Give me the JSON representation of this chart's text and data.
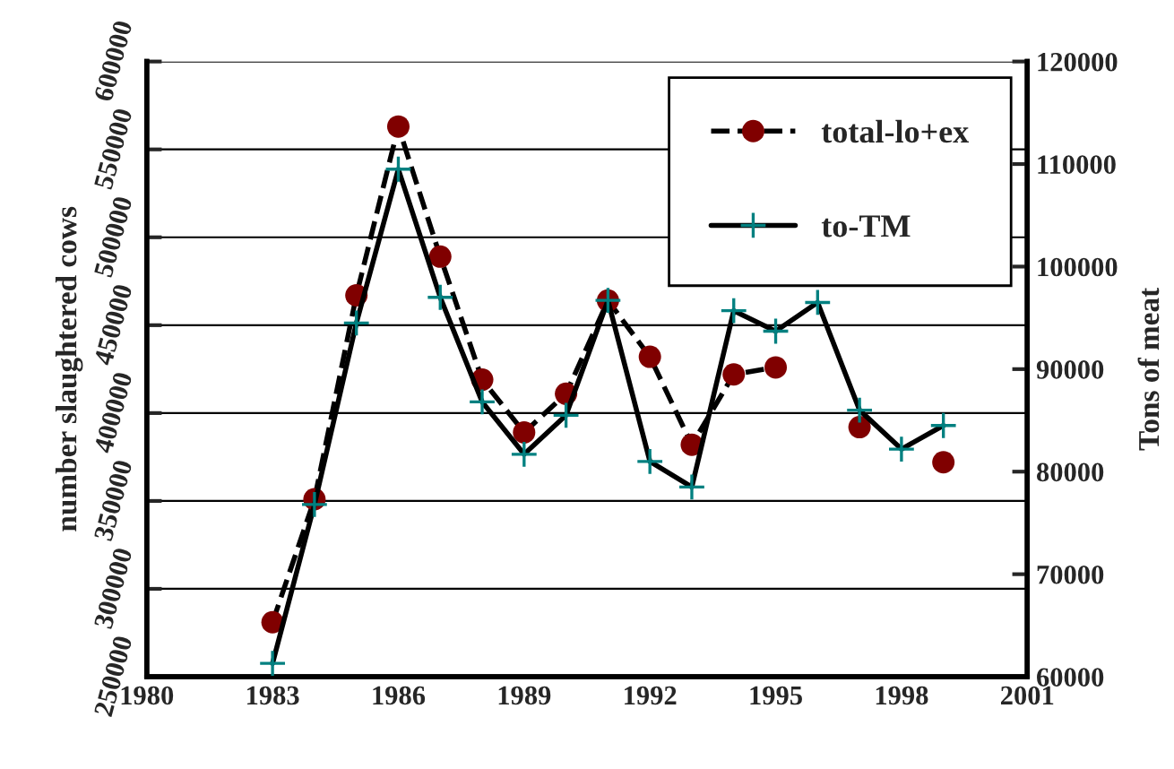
{
  "chart_data": {
    "type": "line",
    "xlabel": null,
    "ylabel": "number slaughtered cows",
    "y2label": "Tons of meat",
    "x": [
      1983,
      1984,
      1985,
      1986,
      1987,
      1988,
      1989,
      1990,
      1991,
      1992,
      1993,
      1994,
      1995,
      1996,
      1997,
      1998,
      1999
    ],
    "series": [
      {
        "name": "total-lo+ex",
        "color": "#800000",
        "marker": "circle",
        "line_style": "dashed",
        "values": [
          281000,
          351000,
          467000,
          563000,
          489000,
          419000,
          389000,
          411000,
          464000,
          432000,
          382000,
          422000,
          426000,
          null,
          392000,
          null,
          372000
        ]
      },
      {
        "name": "to-TM",
        "color": "#008080",
        "marker": "cross",
        "line_style": "solid",
        "axis": "y2",
        "values": [
          61300,
          76800,
          94500,
          109500,
          97000,
          86800,
          81700,
          85500,
          96700,
          81000,
          78500,
          95700,
          93700,
          96500,
          86000,
          82200,
          84500
        ]
      }
    ],
    "xlim": [
      1980,
      2001
    ],
    "xticks": [
      1980,
      1983,
      1986,
      1989,
      1992,
      1995,
      1998,
      2001
    ],
    "ylim": [
      250000,
      600000
    ],
    "yticks": [
      250000,
      300000,
      350000,
      400000,
      450000,
      500000,
      550000,
      600000
    ],
    "y2lim": [
      60000,
      120000
    ],
    "y2ticks": [
      60000,
      70000,
      80000,
      90000,
      100000,
      110000,
      120000
    ],
    "grid": "y",
    "legend": "top right"
  }
}
